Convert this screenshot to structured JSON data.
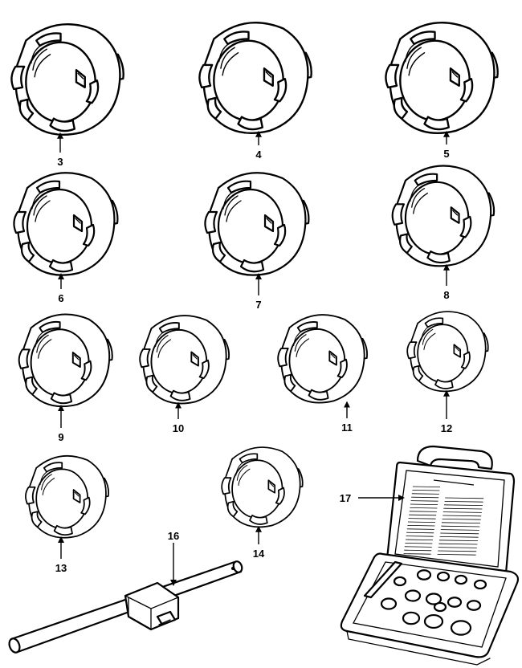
{
  "diagram": {
    "parts": [
      {
        "id": "3",
        "label": "3",
        "kind": "socket"
      },
      {
        "id": "4",
        "label": "4",
        "kind": "socket"
      },
      {
        "id": "5",
        "label": "5",
        "kind": "socket"
      },
      {
        "id": "6",
        "label": "6",
        "kind": "socket"
      },
      {
        "id": "7",
        "label": "7",
        "kind": "socket"
      },
      {
        "id": "8",
        "label": "8",
        "kind": "socket"
      },
      {
        "id": "9",
        "label": "9",
        "kind": "socket"
      },
      {
        "id": "10",
        "label": "10",
        "kind": "socket"
      },
      {
        "id": "11",
        "label": "11",
        "kind": "socket"
      },
      {
        "id": "12",
        "label": "12",
        "kind": "socket"
      },
      {
        "id": "13",
        "label": "13",
        "kind": "socket"
      },
      {
        "id": "14",
        "label": "14",
        "kind": "socket"
      },
      {
        "id": "16",
        "label": "16",
        "kind": "t-handle"
      },
      {
        "id": "17",
        "label": "17",
        "kind": "case"
      }
    ]
  }
}
